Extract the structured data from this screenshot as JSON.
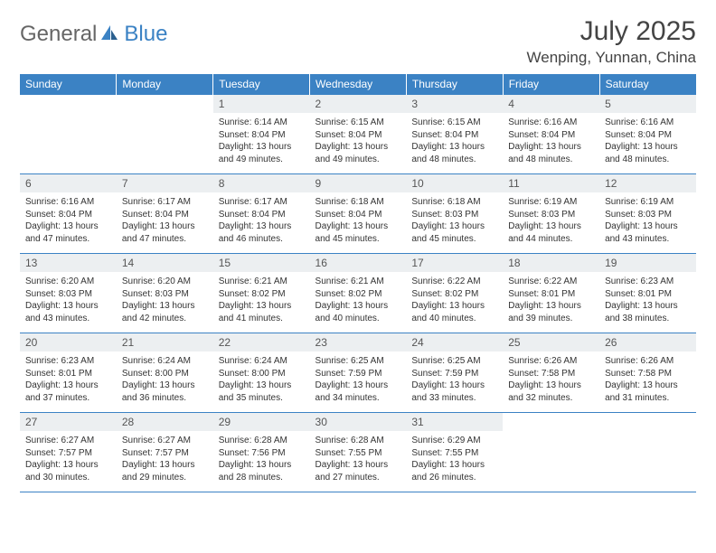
{
  "logo": {
    "text_gray": "General",
    "text_blue": "Blue"
  },
  "title": "July 2025",
  "location": "Wenping, Yunnan, China",
  "colors": {
    "header_bg": "#3b82c4",
    "header_text": "#ffffff",
    "day_num_bg": "#eceff1",
    "border": "#3b82c4",
    "body_text": "#333333"
  },
  "day_headers": [
    "Sunday",
    "Monday",
    "Tuesday",
    "Wednesday",
    "Thursday",
    "Friday",
    "Saturday"
  ],
  "weeks": [
    [
      {
        "n": "",
        "sr": "",
        "ss": "",
        "dl": ""
      },
      {
        "n": "",
        "sr": "",
        "ss": "",
        "dl": ""
      },
      {
        "n": "1",
        "sr": "Sunrise: 6:14 AM",
        "ss": "Sunset: 8:04 PM",
        "dl": "Daylight: 13 hours and 49 minutes."
      },
      {
        "n": "2",
        "sr": "Sunrise: 6:15 AM",
        "ss": "Sunset: 8:04 PM",
        "dl": "Daylight: 13 hours and 49 minutes."
      },
      {
        "n": "3",
        "sr": "Sunrise: 6:15 AM",
        "ss": "Sunset: 8:04 PM",
        "dl": "Daylight: 13 hours and 48 minutes."
      },
      {
        "n": "4",
        "sr": "Sunrise: 6:16 AM",
        "ss": "Sunset: 8:04 PM",
        "dl": "Daylight: 13 hours and 48 minutes."
      },
      {
        "n": "5",
        "sr": "Sunrise: 6:16 AM",
        "ss": "Sunset: 8:04 PM",
        "dl": "Daylight: 13 hours and 48 minutes."
      }
    ],
    [
      {
        "n": "6",
        "sr": "Sunrise: 6:16 AM",
        "ss": "Sunset: 8:04 PM",
        "dl": "Daylight: 13 hours and 47 minutes."
      },
      {
        "n": "7",
        "sr": "Sunrise: 6:17 AM",
        "ss": "Sunset: 8:04 PM",
        "dl": "Daylight: 13 hours and 47 minutes."
      },
      {
        "n": "8",
        "sr": "Sunrise: 6:17 AM",
        "ss": "Sunset: 8:04 PM",
        "dl": "Daylight: 13 hours and 46 minutes."
      },
      {
        "n": "9",
        "sr": "Sunrise: 6:18 AM",
        "ss": "Sunset: 8:04 PM",
        "dl": "Daylight: 13 hours and 45 minutes."
      },
      {
        "n": "10",
        "sr": "Sunrise: 6:18 AM",
        "ss": "Sunset: 8:03 PM",
        "dl": "Daylight: 13 hours and 45 minutes."
      },
      {
        "n": "11",
        "sr": "Sunrise: 6:19 AM",
        "ss": "Sunset: 8:03 PM",
        "dl": "Daylight: 13 hours and 44 minutes."
      },
      {
        "n": "12",
        "sr": "Sunrise: 6:19 AM",
        "ss": "Sunset: 8:03 PM",
        "dl": "Daylight: 13 hours and 43 minutes."
      }
    ],
    [
      {
        "n": "13",
        "sr": "Sunrise: 6:20 AM",
        "ss": "Sunset: 8:03 PM",
        "dl": "Daylight: 13 hours and 43 minutes."
      },
      {
        "n": "14",
        "sr": "Sunrise: 6:20 AM",
        "ss": "Sunset: 8:03 PM",
        "dl": "Daylight: 13 hours and 42 minutes."
      },
      {
        "n": "15",
        "sr": "Sunrise: 6:21 AM",
        "ss": "Sunset: 8:02 PM",
        "dl": "Daylight: 13 hours and 41 minutes."
      },
      {
        "n": "16",
        "sr": "Sunrise: 6:21 AM",
        "ss": "Sunset: 8:02 PM",
        "dl": "Daylight: 13 hours and 40 minutes."
      },
      {
        "n": "17",
        "sr": "Sunrise: 6:22 AM",
        "ss": "Sunset: 8:02 PM",
        "dl": "Daylight: 13 hours and 40 minutes."
      },
      {
        "n": "18",
        "sr": "Sunrise: 6:22 AM",
        "ss": "Sunset: 8:01 PM",
        "dl": "Daylight: 13 hours and 39 minutes."
      },
      {
        "n": "19",
        "sr": "Sunrise: 6:23 AM",
        "ss": "Sunset: 8:01 PM",
        "dl": "Daylight: 13 hours and 38 minutes."
      }
    ],
    [
      {
        "n": "20",
        "sr": "Sunrise: 6:23 AM",
        "ss": "Sunset: 8:01 PM",
        "dl": "Daylight: 13 hours and 37 minutes."
      },
      {
        "n": "21",
        "sr": "Sunrise: 6:24 AM",
        "ss": "Sunset: 8:00 PM",
        "dl": "Daylight: 13 hours and 36 minutes."
      },
      {
        "n": "22",
        "sr": "Sunrise: 6:24 AM",
        "ss": "Sunset: 8:00 PM",
        "dl": "Daylight: 13 hours and 35 minutes."
      },
      {
        "n": "23",
        "sr": "Sunrise: 6:25 AM",
        "ss": "Sunset: 7:59 PM",
        "dl": "Daylight: 13 hours and 34 minutes."
      },
      {
        "n": "24",
        "sr": "Sunrise: 6:25 AM",
        "ss": "Sunset: 7:59 PM",
        "dl": "Daylight: 13 hours and 33 minutes."
      },
      {
        "n": "25",
        "sr": "Sunrise: 6:26 AM",
        "ss": "Sunset: 7:58 PM",
        "dl": "Daylight: 13 hours and 32 minutes."
      },
      {
        "n": "26",
        "sr": "Sunrise: 6:26 AM",
        "ss": "Sunset: 7:58 PM",
        "dl": "Daylight: 13 hours and 31 minutes."
      }
    ],
    [
      {
        "n": "27",
        "sr": "Sunrise: 6:27 AM",
        "ss": "Sunset: 7:57 PM",
        "dl": "Daylight: 13 hours and 30 minutes."
      },
      {
        "n": "28",
        "sr": "Sunrise: 6:27 AM",
        "ss": "Sunset: 7:57 PM",
        "dl": "Daylight: 13 hours and 29 minutes."
      },
      {
        "n": "29",
        "sr": "Sunrise: 6:28 AM",
        "ss": "Sunset: 7:56 PM",
        "dl": "Daylight: 13 hours and 28 minutes."
      },
      {
        "n": "30",
        "sr": "Sunrise: 6:28 AM",
        "ss": "Sunset: 7:55 PM",
        "dl": "Daylight: 13 hours and 27 minutes."
      },
      {
        "n": "31",
        "sr": "Sunrise: 6:29 AM",
        "ss": "Sunset: 7:55 PM",
        "dl": "Daylight: 13 hours and 26 minutes."
      },
      {
        "n": "",
        "sr": "",
        "ss": "",
        "dl": ""
      },
      {
        "n": "",
        "sr": "",
        "ss": "",
        "dl": ""
      }
    ]
  ]
}
